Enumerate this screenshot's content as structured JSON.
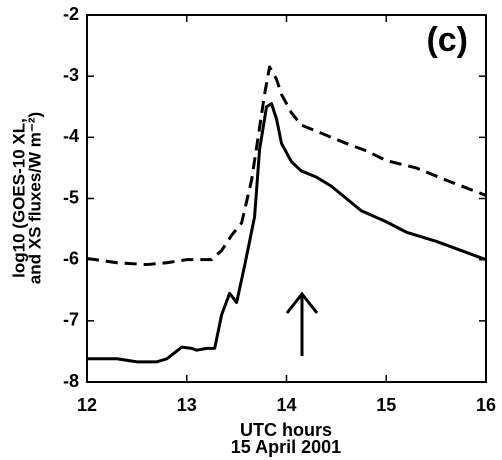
{
  "chart_data": {
    "type": "line",
    "annotation": "(c)",
    "xlabel": [
      "UTC hours",
      "15 April 2001"
    ],
    "ylabel": [
      "log10 (GOES-10 XL,",
      "and XS fluxes/W m⁻²)"
    ],
    "xlim": [
      12,
      16
    ],
    "xticks": [
      12,
      13,
      14,
      15,
      16
    ],
    "ylim": [
      -8,
      -2
    ],
    "yticks": [
      -8,
      -7,
      -6,
      -5,
      -4,
      -3,
      -2
    ],
    "grid": false,
    "series": [
      {
        "color": "#000000",
        "dash": false,
        "x": [
          12.0,
          12.3,
          12.5,
          12.7,
          12.8,
          12.95,
          13.05,
          13.1,
          13.2,
          13.28,
          13.35,
          13.43,
          13.5,
          13.58,
          13.68,
          13.73,
          13.8,
          13.85,
          13.9,
          13.95,
          14.05,
          14.15,
          14.3,
          14.45,
          14.6,
          14.75,
          15.0,
          15.2,
          15.5,
          15.8,
          16.0
        ],
        "values": [
          -7.62,
          -7.62,
          -7.67,
          -7.67,
          -7.62,
          -7.43,
          -7.45,
          -7.48,
          -7.45,
          -7.45,
          -6.9,
          -6.55,
          -6.7,
          -6.1,
          -5.3,
          -4.2,
          -3.5,
          -3.45,
          -3.7,
          -4.1,
          -4.4,
          -4.55,
          -4.65,
          -4.8,
          -5.0,
          -5.2,
          -5.38,
          -5.55,
          -5.7,
          -5.88,
          -6.0
        ]
      },
      {
        "color": "#000000",
        "dash": true,
        "x": [
          12.0,
          12.3,
          12.6,
          12.8,
          13.0,
          13.25,
          13.35,
          13.45,
          13.55,
          13.65,
          13.72,
          13.78,
          13.83,
          13.9,
          13.95,
          14.05,
          14.15,
          14.3,
          14.45,
          14.6,
          14.8,
          15.0,
          15.3,
          15.6,
          16.0
        ],
        "values": [
          -5.98,
          -6.05,
          -6.08,
          -6.05,
          -6.0,
          -6.0,
          -5.85,
          -5.6,
          -5.4,
          -4.7,
          -3.95,
          -3.3,
          -2.85,
          -3.05,
          -3.3,
          -3.6,
          -3.8,
          -3.9,
          -4.0,
          -4.1,
          -4.22,
          -4.38,
          -4.5,
          -4.7,
          -4.95
        ]
      }
    ]
  }
}
